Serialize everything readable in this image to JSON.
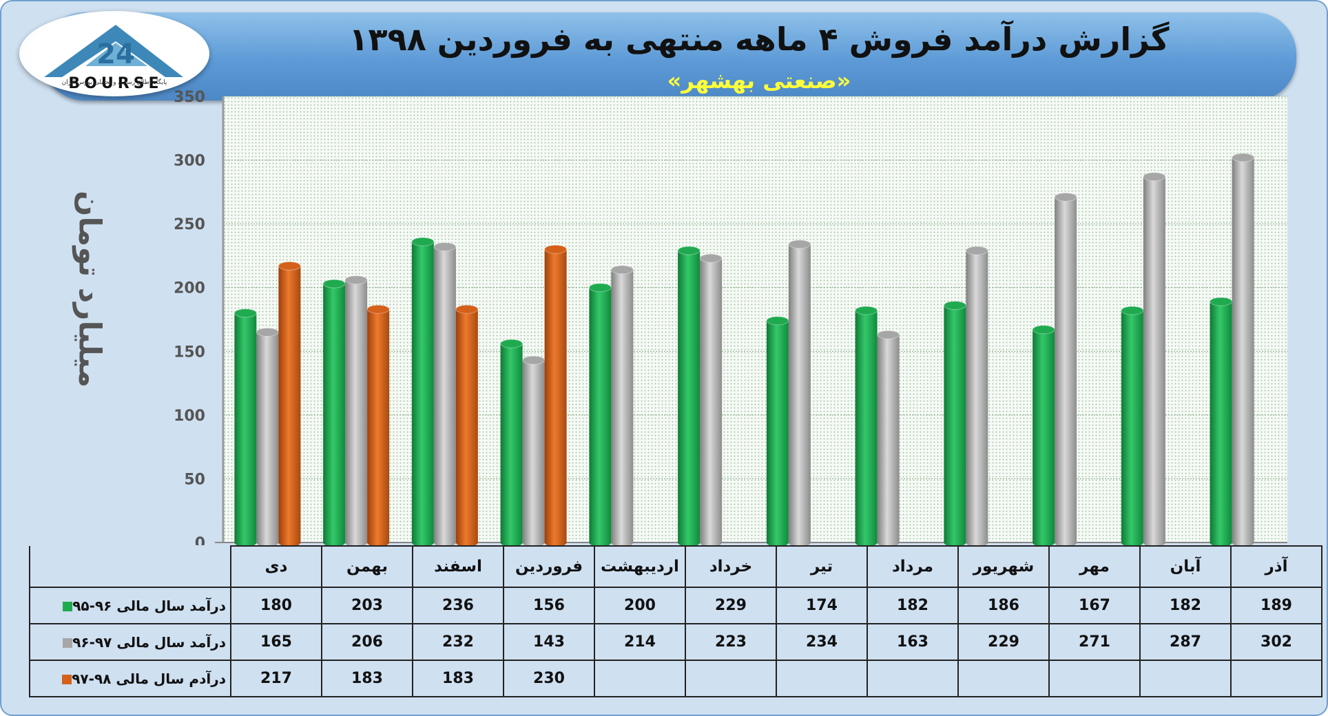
{
  "header": {
    "title": "گزارش درآمد فروش ۴ ماهه منتهی به فروردین ۱۳۹۸",
    "subtitle": "«صنعتی بهشهر»"
  },
  "logo": {
    "text": "BOURSE",
    "number": "24",
    "caption": "پایگاه اطلاع رسانی و تحلیلی بورس ایران"
  },
  "colors": {
    "series1": "#1faa4f",
    "series2": "#a6a6a6",
    "series3": "#d4601a",
    "header": "#5d9ad6",
    "subtitle": "#ffff3a"
  },
  "chart_data": {
    "type": "bar",
    "title": "گزارش درآمد فروش ۴ ماهه منتهی به فروردین ۱۳۹۸",
    "subtitle": "«صنعتی بهشهر»",
    "ylabel": "میلیارد تومان",
    "xlabel": "",
    "ylim": [
      0,
      350
    ],
    "yticks": [
      0,
      50,
      100,
      150,
      200,
      250,
      300,
      350
    ],
    "categories": [
      "دی",
      "بهمن",
      "اسفند",
      "فروردین",
      "اردیبهشت",
      "خرداد",
      "تیر",
      "مرداد",
      "شهریور",
      "مهر",
      "آبان",
      "آذر"
    ],
    "series": [
      {
        "name": "درآمد سال مالی ۹۶-۹۵",
        "color": "#1faa4f",
        "values": [
          180,
          203,
          236,
          156,
          200,
          229,
          174,
          182,
          186,
          167,
          182,
          189
        ]
      },
      {
        "name": "درآمد سال مالی ۹۷-۹۶",
        "color": "#a6a6a6",
        "values": [
          165,
          206,
          232,
          143,
          214,
          223,
          234,
          163,
          229,
          271,
          287,
          302
        ]
      },
      {
        "name": "درآدم سال مالی ۹۸-۹۷",
        "color": "#d4601a",
        "values": [
          217,
          183,
          183,
          230,
          null,
          null,
          null,
          null,
          null,
          null,
          null,
          null
        ]
      }
    ],
    "grid": true,
    "legend": "data-table"
  }
}
